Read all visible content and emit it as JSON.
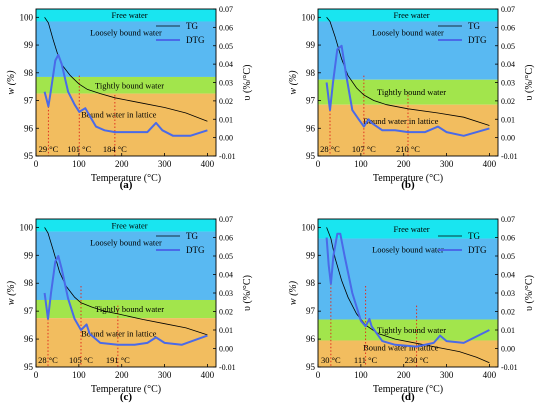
{
  "colors": {
    "free_water": "#19e5f0",
    "loosely_bound": "#59b9f2",
    "tightly_bound": "#a2e54c",
    "lattice": "#f2bd5f",
    "tg_line": "#000000",
    "dtg_line": "#4a6ae8",
    "marker_line": "#e03020"
  },
  "chart_data": [
    {
      "type": "line",
      "panel_label": "(a)",
      "xlabel": "Temperature (°C)",
      "ylabel_left": "w (%)",
      "ylabel_right": "υ (%/°C)",
      "xlim": [
        0,
        420
      ],
      "ylim_left": [
        95,
        100.3
      ],
      "ylim_right": [
        -0.01,
        0.07
      ],
      "x_ticks": [
        "0",
        "100",
        "200",
        "300",
        "400"
      ],
      "y_left_ticks": [
        "95",
        "96",
        "97",
        "98",
        "99",
        "100"
      ],
      "y_right_ticks": [
        "-0.01",
        "0.00",
        "0.01",
        "0.02",
        "0.03",
        "0.04",
        "0.05",
        "0.06",
        "0.07"
      ],
      "legend": {
        "position": "top-right",
        "entries": [
          "TG",
          "DTG"
        ]
      },
      "regions": [
        {
          "label": "Free water",
          "from": 99.85,
          "to": 100.3
        },
        {
          "label": "Loosely bound water",
          "from": 97.85,
          "to": 99.85
        },
        {
          "label": "Tightly bound water",
          "from": 97.25,
          "to": 97.85
        },
        {
          "label": "Bound water in lattice",
          "from": 95,
          "to": 97.25
        }
      ],
      "markers": [
        {
          "x": 29,
          "label": "29 °C"
        },
        {
          "x": 101,
          "label": "101 °C"
        },
        {
          "x": 184,
          "label": "184 °C"
        }
      ],
      "series": [
        {
          "name": "TG",
          "axis": "left",
          "points": [
            [
              20,
              100
            ],
            [
              29,
              99.8
            ],
            [
              40,
              99.2
            ],
            [
              50,
              98.7
            ],
            [
              60,
              98.3
            ],
            [
              80,
              97.9
            ],
            [
              100,
              97.6
            ],
            [
              120,
              97.4
            ],
            [
              150,
              97.25
            ],
            [
              184,
              97.1
            ],
            [
              250,
              96.9
            ],
            [
              300,
              96.75
            ],
            [
              350,
              96.55
            ],
            [
              400,
              96.25
            ]
          ]
        },
        {
          "name": "DTG",
          "axis": "right",
          "points": [
            [
              20,
              0.025
            ],
            [
              29,
              0.017
            ],
            [
              35,
              0.026
            ],
            [
              45,
              0.042
            ],
            [
              52,
              0.045
            ],
            [
              60,
              0.04
            ],
            [
              75,
              0.025
            ],
            [
              90,
              0.018
            ],
            [
              101,
              0.014
            ],
            [
              115,
              0.016
            ],
            [
              125,
              0.012
            ],
            [
              140,
              0.006
            ],
            [
              160,
              0.004
            ],
            [
              184,
              0.003
            ],
            [
              220,
              0.003
            ],
            [
              260,
              0.003
            ],
            [
              280,
              0.008
            ],
            [
              295,
              0.004
            ],
            [
              320,
              0.001
            ],
            [
              360,
              0.001
            ],
            [
              400,
              0.004
            ]
          ]
        }
      ]
    },
    {
      "type": "line",
      "panel_label": "(b)",
      "xlabel": "Temperature (°C)",
      "ylabel_left": "w (%)",
      "ylabel_right": "υ (%/°C)",
      "xlim": [
        0,
        420
      ],
      "ylim_left": [
        95,
        100.3
      ],
      "ylim_right": [
        -0.01,
        0.07
      ],
      "x_ticks": [
        "0",
        "100",
        "200",
        "300",
        "400"
      ],
      "y_left_ticks": [
        "95",
        "96",
        "97",
        "98",
        "99",
        "100"
      ],
      "y_right_ticks": [
        "-0.01",
        "0.00",
        "0.01",
        "0.02",
        "0.03",
        "0.04",
        "0.05",
        "0.06",
        "0.07"
      ],
      "legend": {
        "position": "top-right",
        "entries": [
          "TG",
          "DTG"
        ]
      },
      "regions": [
        {
          "label": "Free water",
          "from": 99.85,
          "to": 100.3
        },
        {
          "label": "Loosely bound water",
          "from": 97.75,
          "to": 99.85
        },
        {
          "label": "Tightly bound water",
          "from": 96.85,
          "to": 97.75
        },
        {
          "label": "Bound water in lattice",
          "from": 95,
          "to": 96.85
        }
      ],
      "markers": [
        {
          "x": 28,
          "label": "28 °C"
        },
        {
          "x": 107,
          "label": "107 °C"
        },
        {
          "x": 210,
          "label": "210 °C"
        }
      ],
      "series": [
        {
          "name": "TG",
          "axis": "left",
          "points": [
            [
              20,
              100
            ],
            [
              28,
              99.85
            ],
            [
              40,
              99.3
            ],
            [
              55,
              98.5
            ],
            [
              70,
              97.9
            ],
            [
              90,
              97.45
            ],
            [
              107,
              97.2
            ],
            [
              130,
              97.0
            ],
            [
              160,
              96.85
            ],
            [
              210,
              96.7
            ],
            [
              280,
              96.55
            ],
            [
              340,
              96.4
            ],
            [
              400,
              96.1
            ]
          ]
        },
        {
          "name": "DTG",
          "axis": "right",
          "points": [
            [
              20,
              0.03
            ],
            [
              28,
              0.015
            ],
            [
              35,
              0.03
            ],
            [
              45,
              0.048
            ],
            [
              55,
              0.05
            ],
            [
              65,
              0.035
            ],
            [
              80,
              0.015
            ],
            [
              95,
              0.01
            ],
            [
              107,
              0.006
            ],
            [
              118,
              0.01
            ],
            [
              125,
              0.008
            ],
            [
              150,
              0.004
            ],
            [
              180,
              0.004
            ],
            [
              210,
              0.003
            ],
            [
              250,
              0.003
            ],
            [
              280,
              0.006
            ],
            [
              300,
              0.003
            ],
            [
              340,
              0.001
            ],
            [
              400,
              0.005
            ]
          ]
        }
      ]
    },
    {
      "type": "line",
      "panel_label": "(c)",
      "xlabel": "Temperature (°C)",
      "ylabel_left": "w (%)",
      "ylabel_right": "υ (%/°C)",
      "xlim": [
        0,
        420
      ],
      "ylim_left": [
        95,
        100.3
      ],
      "ylim_right": [
        -0.01,
        0.07
      ],
      "x_ticks": [
        "0",
        "100",
        "200",
        "300",
        "400"
      ],
      "y_left_ticks": [
        "95",
        "96",
        "97",
        "98",
        "99",
        "100"
      ],
      "y_right_ticks": [
        "-0.01",
        "0.00",
        "0.01",
        "0.02",
        "0.03",
        "0.04",
        "0.05",
        "0.06",
        "0.07"
      ],
      "legend": {
        "position": "top-right",
        "entries": [
          "TG",
          "DTG"
        ]
      },
      "regions": [
        {
          "label": "Free water",
          "from": 99.85,
          "to": 100.3
        },
        {
          "label": "Loosely bound water",
          "from": 97.4,
          "to": 99.85
        },
        {
          "label": "Tightly bound water",
          "from": 96.75,
          "to": 97.4
        },
        {
          "label": "Bound water in lattice",
          "from": 95,
          "to": 96.75
        }
      ],
      "markers": [
        {
          "x": 28,
          "label": "28 °C"
        },
        {
          "x": 105,
          "label": "105 °C"
        },
        {
          "x": 191,
          "label": "191 °C"
        }
      ],
      "series": [
        {
          "name": "TG",
          "axis": "left",
          "points": [
            [
              20,
              100
            ],
            [
              28,
              99.8
            ],
            [
              40,
              99.2
            ],
            [
              55,
              98.4
            ],
            [
              70,
              97.9
            ],
            [
              90,
              97.5
            ],
            [
              105,
              97.3
            ],
            [
              130,
              97.15
            ],
            [
              160,
              97.0
            ],
            [
              191,
              96.9
            ],
            [
              250,
              96.7
            ],
            [
              300,
              96.55
            ],
            [
              350,
              96.4
            ],
            [
              400,
              96.15
            ]
          ]
        },
        {
          "name": "DTG",
          "axis": "right",
          "points": [
            [
              20,
              0.03
            ],
            [
              28,
              0.016
            ],
            [
              35,
              0.03
            ],
            [
              45,
              0.047
            ],
            [
              52,
              0.05
            ],
            [
              60,
              0.043
            ],
            [
              75,
              0.027
            ],
            [
              90,
              0.016
            ],
            [
              105,
              0.01
            ],
            [
              118,
              0.013
            ],
            [
              125,
              0.008
            ],
            [
              150,
              0.003
            ],
            [
              191,
              0.002
            ],
            [
              230,
              0.002
            ],
            [
              260,
              0.003
            ],
            [
              280,
              0.006
            ],
            [
              300,
              0.003
            ],
            [
              340,
              0.002
            ],
            [
              400,
              0.007
            ]
          ]
        }
      ]
    },
    {
      "type": "line",
      "panel_label": "(d)",
      "xlabel": "Temperature (°C)",
      "ylabel_left": "w (%)",
      "ylabel_right": "υ (%/°C)",
      "xlim": [
        0,
        420
      ],
      "ylim_left": [
        95,
        100.3
      ],
      "ylim_right": [
        -0.01,
        0.07
      ],
      "x_ticks": [
        "0",
        "100",
        "200",
        "300",
        "400"
      ],
      "y_left_ticks": [
        "95",
        "96",
        "97",
        "98",
        "99",
        "100"
      ],
      "y_right_ticks": [
        "-0.01",
        "0.00",
        "0.01",
        "0.02",
        "0.03",
        "0.04",
        "0.05",
        "0.06",
        "0.07"
      ],
      "legend": {
        "position": "top-right",
        "entries": [
          "TG",
          "DTG"
        ]
      },
      "regions": [
        {
          "label": "Free water",
          "from": 99.6,
          "to": 100.3
        },
        {
          "label": "Loosely bound water",
          "from": 96.7,
          "to": 99.6
        },
        {
          "label": "Tightly bound water",
          "from": 95.95,
          "to": 96.7
        },
        {
          "label": "Bound water in lattice",
          "from": 95,
          "to": 95.95
        }
      ],
      "markers": [
        {
          "x": 30,
          "label": "30 °C"
        },
        {
          "x": 111,
          "label": "111 °C"
        },
        {
          "x": 230,
          "label": "230 °C"
        }
      ],
      "series": [
        {
          "name": "TG",
          "axis": "left",
          "points": [
            [
              20,
              100
            ],
            [
              30,
              99.6
            ],
            [
              40,
              98.9
            ],
            [
              55,
              98.1
            ],
            [
              70,
              97.5
            ],
            [
              90,
              96.9
            ],
            [
              111,
              96.5
            ],
            [
              140,
              96.2
            ],
            [
              180,
              96.0
            ],
            [
              230,
              95.85
            ],
            [
              280,
              95.7
            ],
            [
              330,
              95.55
            ],
            [
              370,
              95.35
            ],
            [
              400,
              95.15
            ]
          ]
        },
        {
          "name": "DTG",
          "axis": "right",
          "points": [
            [
              20,
              0.06
            ],
            [
              25,
              0.045
            ],
            [
              30,
              0.035
            ],
            [
              36,
              0.05
            ],
            [
              45,
              0.062
            ],
            [
              52,
              0.062
            ],
            [
              62,
              0.05
            ],
            [
              80,
              0.03
            ],
            [
              100,
              0.015
            ],
            [
              111,
              0.012
            ],
            [
              120,
              0.016
            ],
            [
              125,
              0.012
            ],
            [
              150,
              0.004
            ],
            [
              180,
              0.002
            ],
            [
              230,
              0.001
            ],
            [
              270,
              0.003
            ],
            [
              285,
              0.007
            ],
            [
              300,
              0.004
            ],
            [
              340,
              0.003
            ],
            [
              400,
              0.01
            ]
          ]
        }
      ]
    }
  ]
}
